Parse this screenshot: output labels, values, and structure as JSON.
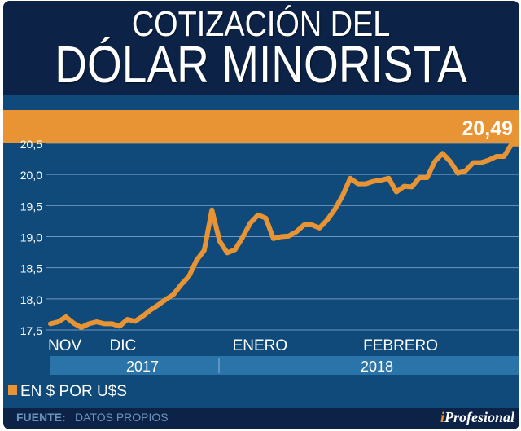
{
  "header": {
    "title_line1": "COTIZACIÓN DEL",
    "title_line2": "DÓLAR MINORISTA"
  },
  "chart_data": {
    "type": "line",
    "title": "COTIZACIÓN DEL DÓLAR MINORISTA",
    "ylabel": "EN $ POR U$S",
    "ylim": [
      17.5,
      20.5
    ],
    "yticks": [
      "17,5",
      "18,0",
      "18,5",
      "19,0",
      "19,5",
      "20,0",
      "20,5"
    ],
    "ytick_values": [
      17.5,
      18.0,
      18.5,
      19.0,
      19.5,
      20.0,
      20.5
    ],
    "month_labels": [
      "NOV",
      "DIC",
      "ENERO",
      "FEBRERO"
    ],
    "month_positions": [
      0,
      8,
      24,
      41
    ],
    "year_labels": [
      "2017",
      "2018"
    ],
    "grid": true,
    "legend": {
      "label": "EN $ POR U$S",
      "position": "bottom-left"
    },
    "last_value_label": "20,49",
    "series": [
      {
        "name": "EN $ POR U$S",
        "color": "#e89434",
        "values": [
          17.6,
          17.63,
          17.71,
          17.61,
          17.54,
          17.6,
          17.63,
          17.6,
          17.6,
          17.56,
          17.67,
          17.64,
          17.72,
          17.82,
          17.9,
          17.99,
          18.07,
          18.23,
          18.36,
          18.62,
          18.78,
          19.43,
          18.93,
          18.74,
          18.79,
          18.99,
          19.22,
          19.35,
          19.3,
          18.97,
          19.0,
          19.01,
          19.08,
          19.19,
          19.19,
          19.14,
          19.27,
          19.44,
          19.66,
          19.94,
          19.85,
          19.85,
          19.89,
          19.91,
          19.94,
          19.72,
          19.81,
          19.8,
          19.95,
          19.95,
          20.21,
          20.34,
          20.21,
          20.02,
          20.06,
          20.19,
          20.19,
          20.23,
          20.29,
          20.29,
          20.49,
          20.49
        ]
      }
    ]
  },
  "footer": {
    "source_key": "FUENTE:",
    "source_value": "DATOS PROPIOS",
    "logo_i": "i",
    "logo_rest": "Profesional"
  },
  "colors": {
    "accent": "#e89434",
    "navy": "#0c2347",
    "chart_bg": "#0f4a7a"
  }
}
